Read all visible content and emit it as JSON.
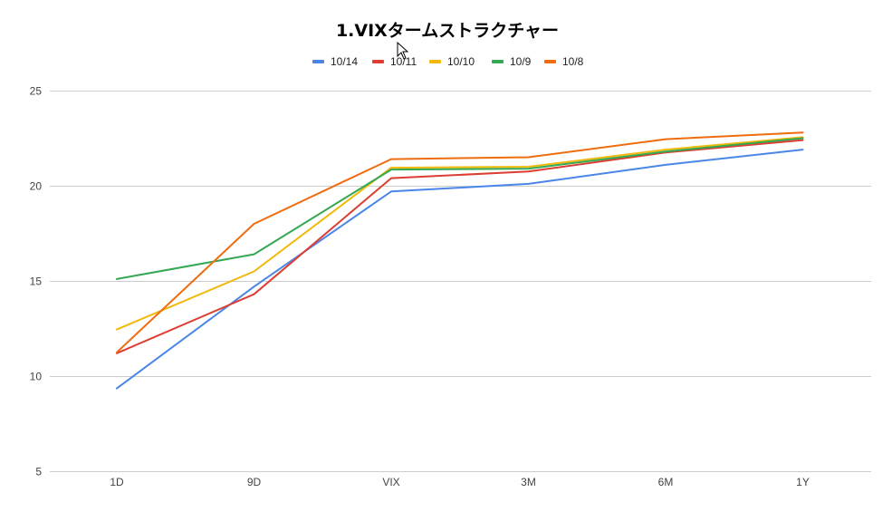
{
  "chart_data": {
    "type": "line",
    "title": "1.VIXタームストラクチャー",
    "xlabel": "",
    "ylabel": "",
    "categories": [
      "1D",
      "9D",
      "VIX",
      "3M",
      "6M",
      "1Y"
    ],
    "ylim": [
      5,
      25
    ],
    "yticks": [
      5,
      10,
      15,
      20,
      25
    ],
    "grid": true,
    "legend_position": "top",
    "series": [
      {
        "name": "10/14",
        "color": "#4a86e8",
        "values": [
          9.35,
          14.7,
          19.7,
          20.1,
          21.1,
          21.9
        ]
      },
      {
        "name": "10/11",
        "color": "#dc3e33",
        "values": [
          11.2,
          14.3,
          20.4,
          20.75,
          21.75,
          22.4
        ]
      },
      {
        "name": "10/10",
        "color": "#f2b90c",
        "values": [
          12.45,
          15.5,
          20.95,
          21.0,
          21.9,
          22.55
        ]
      },
      {
        "name": "10/9",
        "color": "#34a853",
        "values": [
          15.1,
          16.4,
          20.85,
          20.9,
          21.8,
          22.5
        ]
      },
      {
        "name": "10/8",
        "color": "#ef6c0f",
        "values": [
          11.25,
          18.0,
          21.4,
          21.5,
          22.45,
          22.8
        ]
      }
    ]
  }
}
